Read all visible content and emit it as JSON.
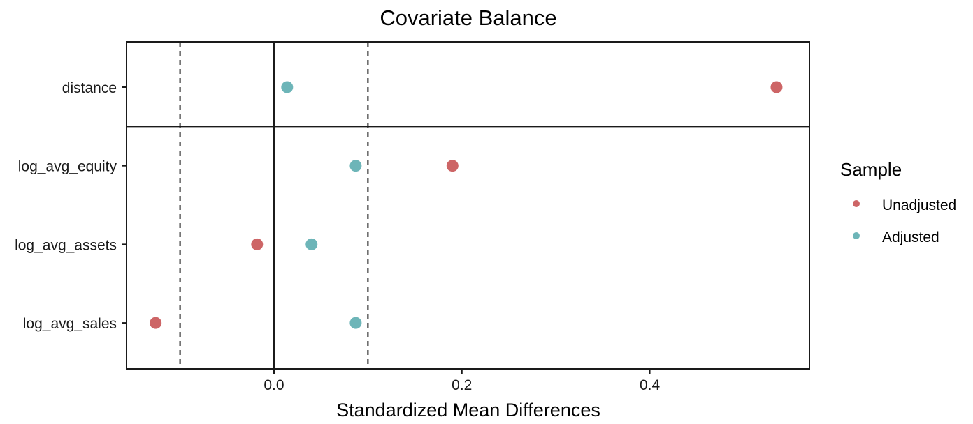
{
  "chart_data": {
    "type": "scatter",
    "title": "Covariate Balance",
    "xlabel": "Standardized Mean Differences",
    "ylabel": "",
    "categories": [
      "distance",
      "log_avg_equity",
      "log_avg_assets",
      "log_avg_sales"
    ],
    "xlim": [
      -0.157,
      0.57
    ],
    "x_ticks": [
      0.0,
      0.2,
      0.4
    ],
    "x_tick_labels": [
      "0.0",
      "0.2",
      "0.4"
    ],
    "reference_lines": {
      "solid": 0,
      "dashed": [
        -0.1,
        0.1
      ]
    },
    "grid": false,
    "legend": {
      "title": "Sample",
      "placement": "right"
    },
    "series": [
      {
        "name": "Unadjusted",
        "color": "#cd6566",
        "values": [
          0.535,
          0.19,
          -0.018,
          -0.126
        ]
      },
      {
        "name": "Adjusted",
        "color": "#6db5b8",
        "values": [
          0.014,
          0.087,
          0.04,
          0.087
        ]
      }
    ]
  }
}
